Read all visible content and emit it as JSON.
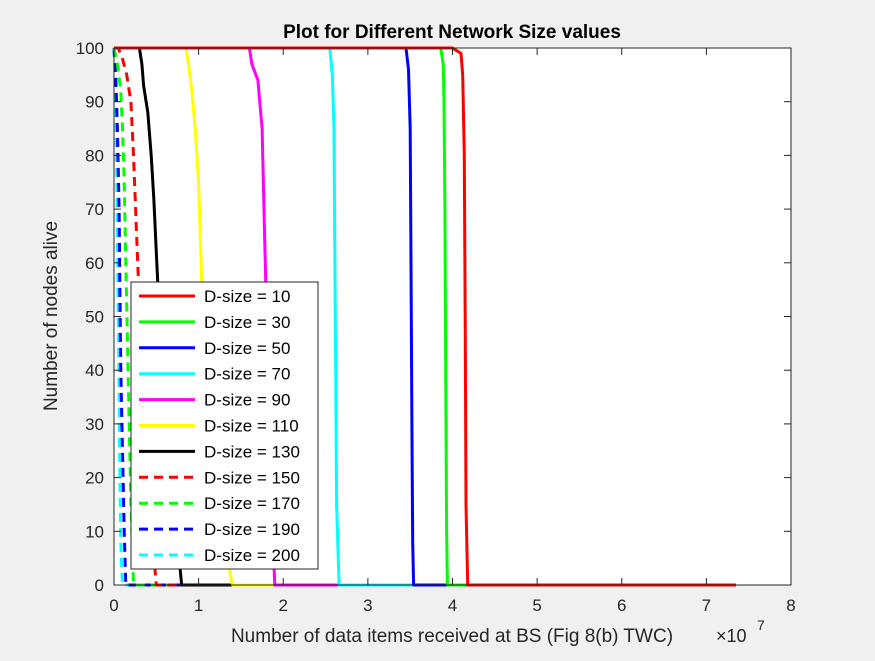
{
  "chart_data": {
    "type": "line",
    "title": "Plot for Different Network Size values",
    "xlabel": "Number of data items received at BS (Fig 8(b) TWC)",
    "ylabel": "Number of nodes alive",
    "x_exponent_base": "×10",
    "x_exponent_power": "7",
    "xlim": [
      0,
      8
    ],
    "ylim": [
      0,
      100
    ],
    "x_ticks": [
      "0",
      "1",
      "2",
      "3",
      "4",
      "5",
      "6",
      "7",
      "8"
    ],
    "y_ticks": [
      "0",
      "10",
      "20",
      "30",
      "40",
      "50",
      "60",
      "70",
      "80",
      "90",
      "100"
    ],
    "grid": false,
    "legend_position": "bottom-left",
    "series": [
      {
        "name": "D-size = 10",
        "color": "#ff0000",
        "dash": "solid",
        "points": [
          [
            0,
            100
          ],
          [
            4.0,
            100
          ],
          [
            4.1,
            99
          ],
          [
            4.12,
            95
          ],
          [
            4.14,
            80
          ],
          [
            4.15,
            50
          ],
          [
            4.16,
            15
          ],
          [
            4.18,
            0
          ],
          [
            7.35,
            0
          ]
        ]
      },
      {
        "name": "D-size = 30",
        "color": "#00ff00",
        "dash": "solid",
        "points": [
          [
            0,
            100
          ],
          [
            3.86,
            100
          ],
          [
            3.89,
            97
          ],
          [
            3.9,
            90
          ],
          [
            3.91,
            70
          ],
          [
            3.92,
            40
          ],
          [
            3.93,
            10
          ],
          [
            3.94,
            0
          ],
          [
            7.2,
            0
          ]
        ]
      },
      {
        "name": "D-size = 50",
        "color": "#0000ff",
        "dash": "solid",
        "points": [
          [
            0,
            100
          ],
          [
            3.45,
            100
          ],
          [
            3.48,
            96
          ],
          [
            3.5,
            85
          ],
          [
            3.51,
            60
          ],
          [
            3.52,
            30
          ],
          [
            3.53,
            8
          ],
          [
            3.54,
            0
          ],
          [
            7.05,
            0
          ]
        ]
      },
      {
        "name": "D-size = 70",
        "color": "#00ffff",
        "dash": "solid",
        "points": [
          [
            0,
            100
          ],
          [
            2.55,
            100
          ],
          [
            2.58,
            95
          ],
          [
            2.6,
            85
          ],
          [
            2.61,
            60
          ],
          [
            2.62,
            40
          ],
          [
            2.63,
            15
          ],
          [
            2.66,
            0
          ],
          [
            6.5,
            0
          ]
        ]
      },
      {
        "name": "D-size = 90",
        "color": "#ff00ff",
        "dash": "solid",
        "points": [
          [
            0,
            100
          ],
          [
            1.6,
            100
          ],
          [
            1.63,
            97
          ],
          [
            1.7,
            94
          ],
          [
            1.75,
            85
          ],
          [
            1.78,
            65
          ],
          [
            1.82,
            40
          ],
          [
            1.86,
            15
          ],
          [
            1.9,
            0
          ],
          [
            5.8,
            0
          ]
        ]
      },
      {
        "name": "D-size = 110",
        "color": "#ffff00",
        "dash": "solid",
        "points": [
          [
            0,
            100
          ],
          [
            0.85,
            100
          ],
          [
            0.88,
            97
          ],
          [
            0.92,
            92
          ],
          [
            0.96,
            85
          ],
          [
            1.0,
            75
          ],
          [
            1.04,
            55
          ],
          [
            1.1,
            35
          ],
          [
            1.2,
            20
          ],
          [
            1.3,
            8
          ],
          [
            1.4,
            0
          ],
          [
            4.85,
            0
          ]
        ]
      },
      {
        "name": "D-size = 130",
        "color": "#000000",
        "dash": "solid",
        "points": [
          [
            0,
            100
          ],
          [
            0.3,
            100
          ],
          [
            0.33,
            97
          ],
          [
            0.35,
            93
          ],
          [
            0.4,
            88
          ],
          [
            0.44,
            80
          ],
          [
            0.47,
            72
          ],
          [
            0.5,
            62
          ],
          [
            0.53,
            52
          ],
          [
            0.57,
            40
          ],
          [
            0.62,
            28
          ],
          [
            0.68,
            18
          ],
          [
            0.75,
            8
          ],
          [
            0.8,
            0
          ],
          [
            3.7,
            0
          ]
        ]
      },
      {
        "name": "D-size = 150",
        "color": "#ff0000",
        "dash": "dashed",
        "points": [
          [
            0,
            100
          ],
          [
            0.05,
            100
          ],
          [
            0.1,
            98
          ],
          [
            0.15,
            95
          ],
          [
            0.2,
            90
          ],
          [
            0.23,
            80
          ],
          [
            0.25,
            72
          ],
          [
            0.28,
            60
          ],
          [
            0.32,
            45
          ],
          [
            0.36,
            30
          ],
          [
            0.42,
            15
          ],
          [
            0.5,
            0
          ],
          [
            2.4,
            0
          ]
        ]
      },
      {
        "name": "D-size = 170",
        "color": "#00ff00",
        "dash": "dashed",
        "points": [
          [
            0,
            100
          ],
          [
            0.04,
            97
          ],
          [
            0.08,
            92
          ],
          [
            0.1,
            85
          ],
          [
            0.12,
            75
          ],
          [
            0.14,
            60
          ],
          [
            0.16,
            45
          ],
          [
            0.18,
            30
          ],
          [
            0.2,
            15
          ],
          [
            0.23,
            0
          ],
          [
            1.5,
            0
          ]
        ]
      },
      {
        "name": "D-size = 190",
        "color": "#0000ff",
        "dash": "dashed",
        "points": [
          [
            0,
            100
          ],
          [
            0.02,
            95
          ],
          [
            0.04,
            85
          ],
          [
            0.06,
            70
          ],
          [
            0.07,
            55
          ],
          [
            0.08,
            40
          ],
          [
            0.1,
            25
          ],
          [
            0.12,
            10
          ],
          [
            0.14,
            0
          ],
          [
            0.9,
            0
          ]
        ]
      },
      {
        "name": "D-size = 200",
        "color": "#00ffff",
        "dash": "dashed",
        "points": [
          [
            0,
            100
          ],
          [
            0.02,
            90
          ],
          [
            0.03,
            80
          ],
          [
            0.04,
            65
          ],
          [
            0.05,
            50
          ],
          [
            0.06,
            35
          ],
          [
            0.07,
            20
          ],
          [
            0.08,
            8
          ],
          [
            0.1,
            0
          ],
          [
            0.6,
            0
          ]
        ]
      }
    ]
  }
}
